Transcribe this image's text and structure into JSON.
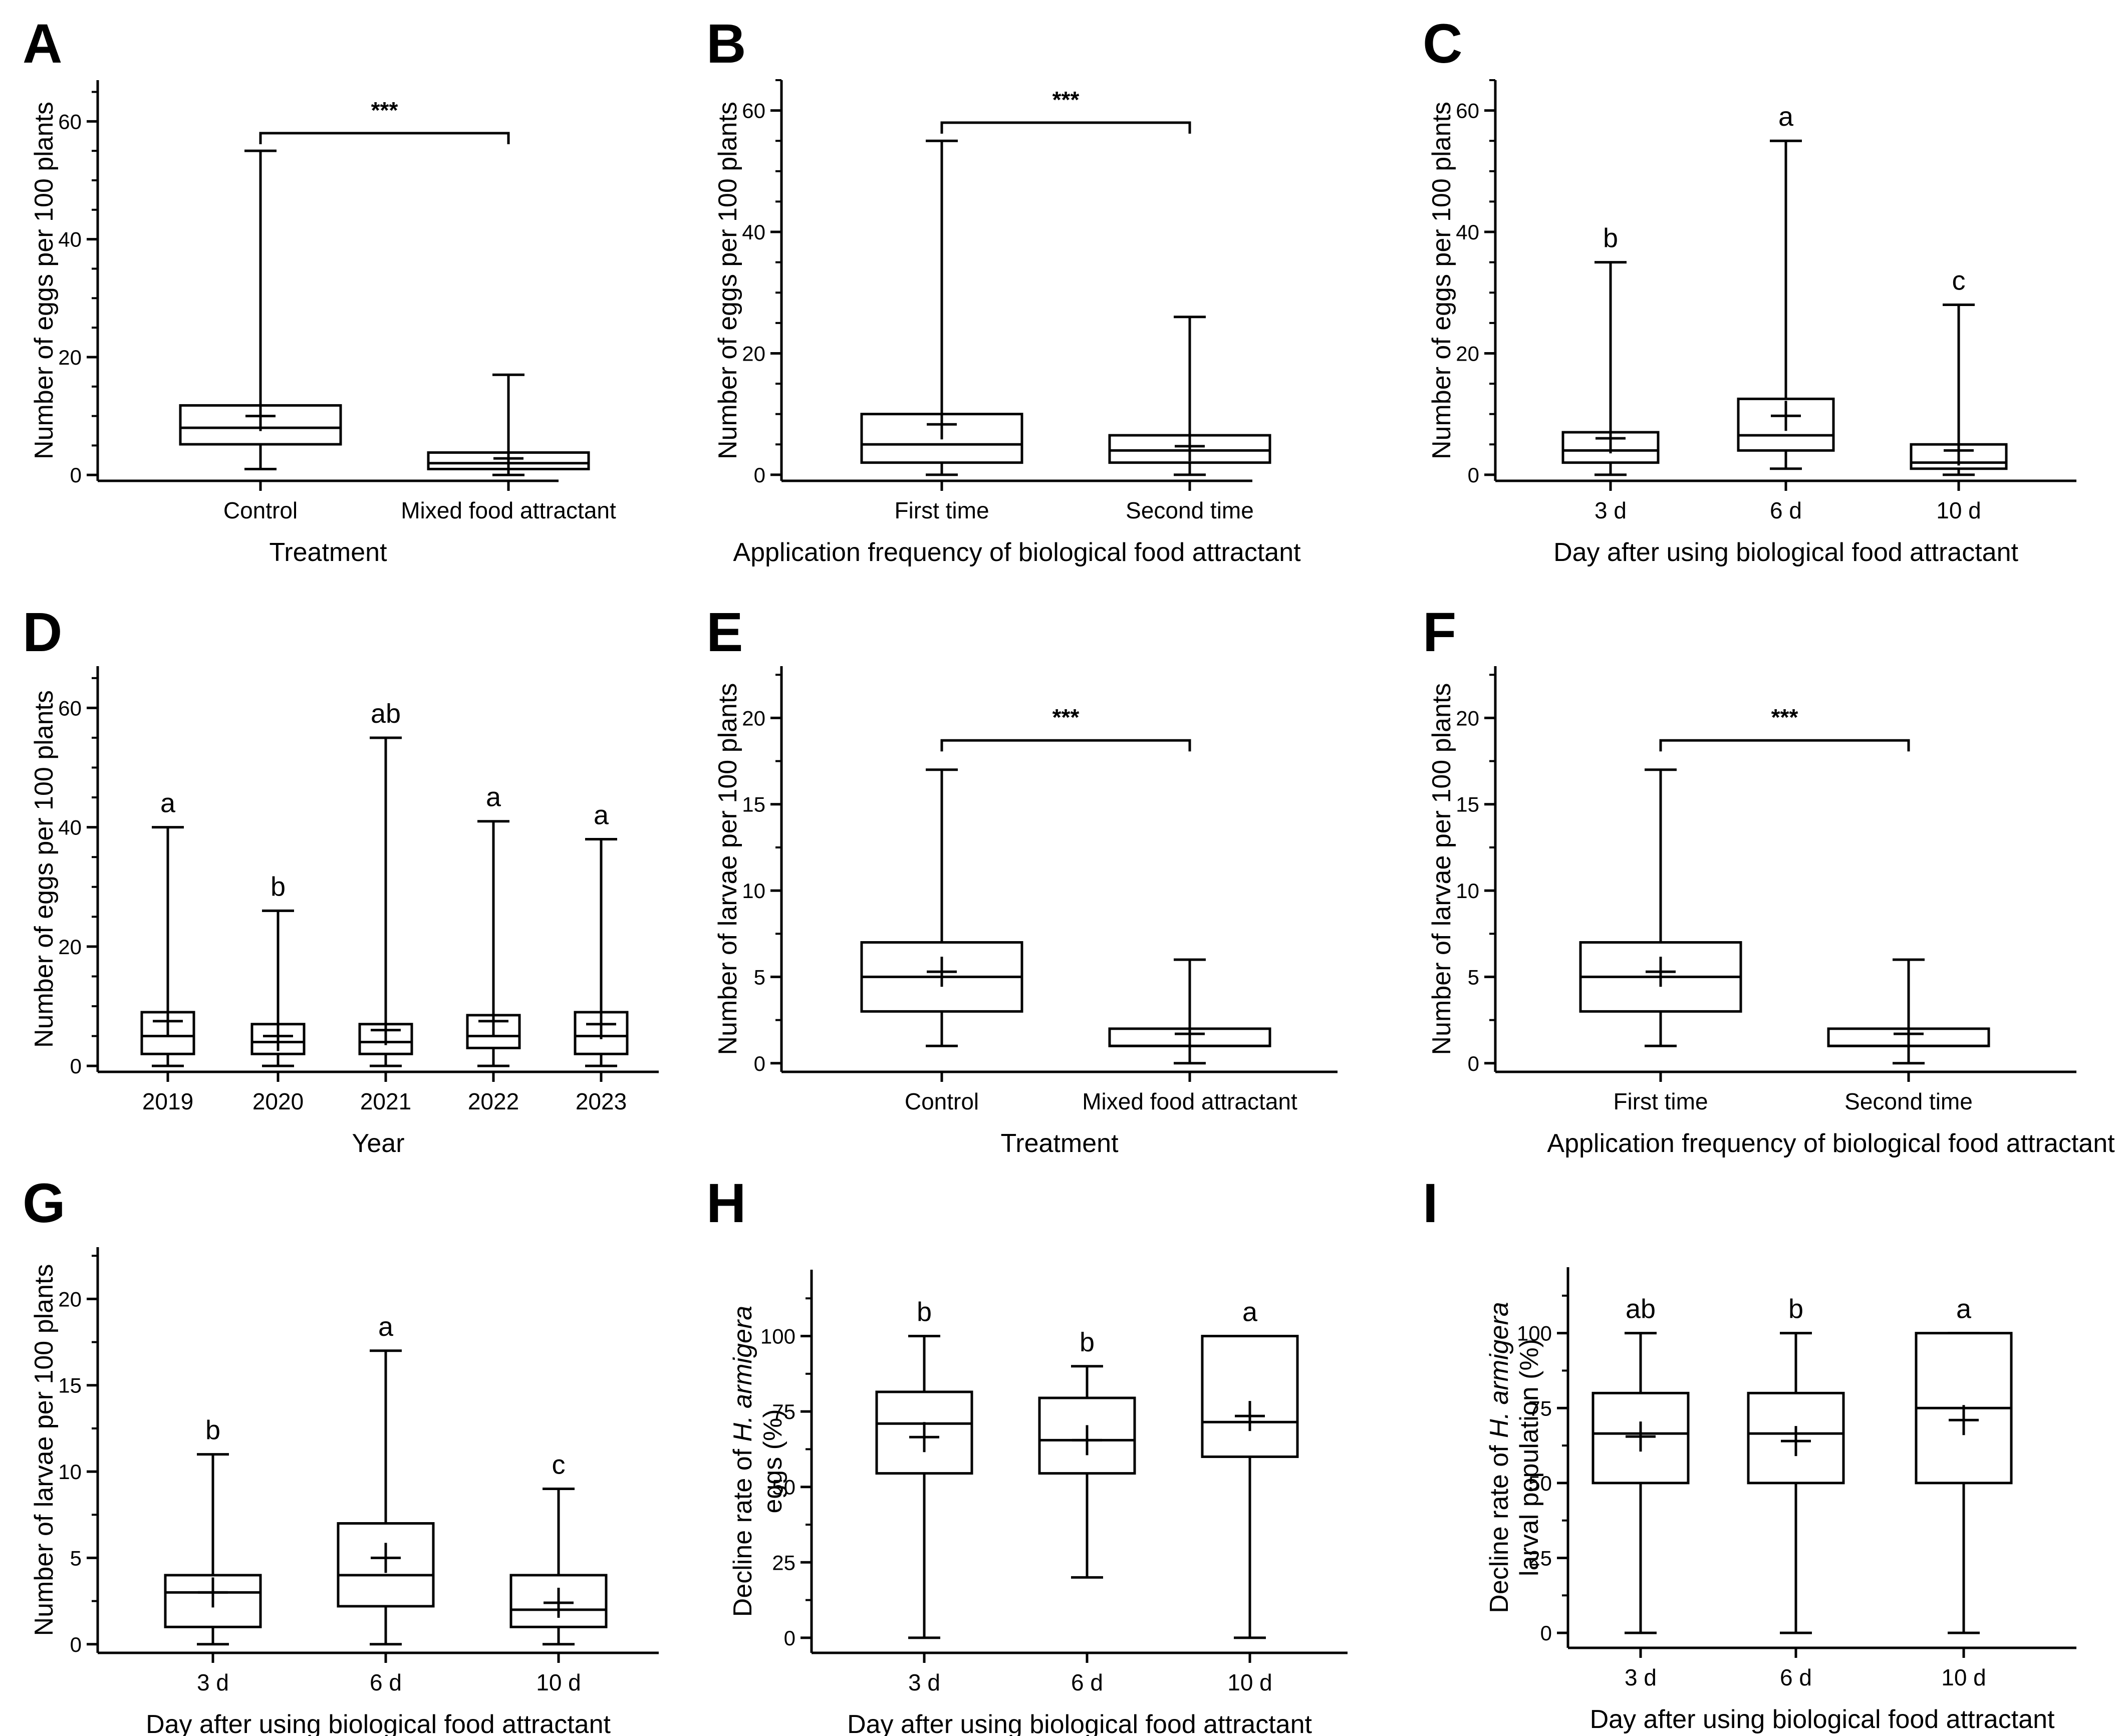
{
  "figure": {
    "panels": [
      {
        "letter": "A",
        "ylabel": "Number of eggs per 100 plants",
        "ylabel_lines": [
          "Number of eggs per 100 plants"
        ],
        "ylabel_italic": "",
        "xlabel": "Treatment",
        "ylim": [
          -1,
          67
        ],
        "yticks": [
          0,
          20,
          40,
          60
        ],
        "ytick_labels": [
          "0",
          "20",
          "40",
          "60"
        ],
        "minor_step": 5,
        "categories": [
          "Control",
          "Mixed food attractant"
        ],
        "boxes": [
          {
            "min": 1,
            "q1": 5.2,
            "median": 8,
            "q3": 11.8,
            "max": 55,
            "mean": 10
          },
          {
            "min": 0,
            "q1": 1,
            "median": 2,
            "q3": 3.8,
            "max": 17,
            "mean": 2.8
          }
        ],
        "letters": [
          "",
          ""
        ],
        "significance": "***",
        "bracket_y": 58
      },
      {
        "letter": "B",
        "ylabel": "Number of eggs per 100 plants",
        "ylabel_lines": [
          "Number of eggs per 100 plants"
        ],
        "ylabel_italic": "",
        "xlabel": "Application frequency of biological food attractant",
        "ylim": [
          -1,
          65
        ],
        "yticks": [
          0,
          20,
          40,
          60
        ],
        "ytick_labels": [
          "0",
          "20",
          "40",
          "60"
        ],
        "minor_step": 5,
        "categories": [
          "First time",
          "Second time"
        ],
        "boxes": [
          {
            "min": 0,
            "q1": 2,
            "median": 5,
            "q3": 10,
            "max": 55,
            "mean": 8.3
          },
          {
            "min": 0,
            "q1": 2,
            "median": 4,
            "q3": 6.5,
            "max": 26,
            "mean": 4.7
          }
        ],
        "letters": [
          "",
          ""
        ],
        "significance": "***",
        "bracket_y": 58
      },
      {
        "letter": "C",
        "ylabel": "Number of eggs per 100 plants",
        "ylabel_lines": [
          "Number of eggs per 100 plants"
        ],
        "ylabel_italic": "",
        "xlabel": "Day after using biological food attractant",
        "ylim": [
          -1,
          65
        ],
        "yticks": [
          0,
          20,
          40,
          60
        ],
        "ytick_labels": [
          "0",
          "20",
          "40",
          "60"
        ],
        "minor_step": 5,
        "categories": [
          "3 d",
          "6 d",
          "10 d"
        ],
        "boxes": [
          {
            "min": 0,
            "q1": 2,
            "median": 4,
            "q3": 7,
            "max": 35,
            "mean": 6
          },
          {
            "min": 1,
            "q1": 4,
            "median": 6.5,
            "q3": 12.5,
            "max": 55,
            "mean": 9.7
          },
          {
            "min": 0,
            "q1": 1,
            "median": 2,
            "q3": 5,
            "max": 28,
            "mean": 4
          }
        ],
        "letters": [
          "b",
          "a",
          "c"
        ],
        "significance": "",
        "bracket_y": 0
      },
      {
        "letter": "D",
        "ylabel": "Number of eggs per 100 plants",
        "ylabel_lines": [
          "Number of eggs per 100 plants"
        ],
        "ylabel_italic": "",
        "xlabel": "Year",
        "ylim": [
          -1,
          67
        ],
        "yticks": [
          0,
          20,
          40,
          60
        ],
        "ytick_labels": [
          "0",
          "20",
          "40",
          "60"
        ],
        "minor_step": 5,
        "categories": [
          "2019",
          "2020",
          "2021",
          "2022",
          "2023"
        ],
        "boxes": [
          {
            "min": 0,
            "q1": 2,
            "median": 5,
            "q3": 9,
            "max": 40,
            "mean": 7.5
          },
          {
            "min": 0,
            "q1": 2,
            "median": 4,
            "q3": 7,
            "max": 26,
            "mean": 5
          },
          {
            "min": 0,
            "q1": 2,
            "median": 4,
            "q3": 7,
            "max": 55,
            "mean": 6
          },
          {
            "min": 0,
            "q1": 3,
            "median": 5,
            "q3": 8.5,
            "max": 41,
            "mean": 7.5
          },
          {
            "min": 0,
            "q1": 2,
            "median": 5,
            "q3": 9,
            "max": 38,
            "mean": 7
          }
        ],
        "letters": [
          "a",
          "b",
          "ab",
          "a",
          "a"
        ],
        "significance": "",
        "bracket_y": 0
      },
      {
        "letter": "E",
        "ylabel": "Number of larvae per 100 plants",
        "ylabel_lines": [
          "Number of larvae per 100 plants"
        ],
        "ylabel_italic": "",
        "xlabel": "Treatment",
        "ylim": [
          -0.5,
          23
        ],
        "yticks": [
          0,
          5,
          10,
          15,
          20
        ],
        "ytick_labels": [
          "0",
          "5",
          "10",
          "15",
          "20"
        ],
        "minor_step": 2.5,
        "categories": [
          "Control",
          "Mixed food attractant"
        ],
        "boxes": [
          {
            "min": 1,
            "q1": 3,
            "median": 5,
            "q3": 7,
            "max": 17,
            "mean": 5.3
          },
          {
            "min": 0,
            "q1": 1,
            "median": 1,
            "q3": 2,
            "max": 6,
            "mean": 1.7
          }
        ],
        "letters": [
          "",
          ""
        ],
        "significance": "***",
        "bracket_y": 18.7
      },
      {
        "letter": "F",
        "ylabel": "Number of larvae per 100 plants",
        "ylabel_lines": [
          "Number of larvae per 100 plants"
        ],
        "ylabel_italic": "",
        "xlabel": "Application frequency of biological food attractant",
        "ylim": [
          -0.5,
          23
        ],
        "yticks": [
          0,
          5,
          10,
          15,
          20
        ],
        "ytick_labels": [
          "0",
          "5",
          "10",
          "15",
          "20"
        ],
        "minor_step": 2.5,
        "categories": [
          "First time",
          "Second time"
        ],
        "boxes": [
          {
            "min": 1,
            "q1": 3,
            "median": 5,
            "q3": 7,
            "max": 17,
            "mean": 5.3
          },
          {
            "min": 0,
            "q1": 1,
            "median": 1,
            "q3": 2,
            "max": 6,
            "mean": 1.7
          }
        ],
        "letters": [
          "",
          ""
        ],
        "significance": "***",
        "bracket_y": 18.7
      },
      {
        "letter": "G",
        "ylabel": "Number of larvae per 100 plants",
        "ylabel_lines": [
          "Number of larvae per 100 plants"
        ],
        "ylabel_italic": "",
        "xlabel": "Day after using biological food attractant",
        "ylim": [
          -0.5,
          23
        ],
        "yticks": [
          0,
          5,
          10,
          15,
          20
        ],
        "ytick_labels": [
          "0",
          "5",
          "10",
          "15",
          "20"
        ],
        "minor_step": 2.5,
        "categories": [
          "3 d",
          "6 d",
          "10 d"
        ],
        "boxes": [
          {
            "min": 0,
            "q1": 1,
            "median": 3,
            "q3": 4,
            "max": 11,
            "mean": 3
          },
          {
            "min": 0,
            "q1": 2.2,
            "median": 4,
            "q3": 7,
            "max": 17,
            "mean": 5
          },
          {
            "min": 0,
            "q1": 1,
            "median": 2,
            "q3": 4,
            "max": 9,
            "mean": 2.4
          }
        ],
        "letters": [
          "b",
          "a",
          "c"
        ],
        "significance": "",
        "bracket_y": 0
      },
      {
        "letter": "H",
        "ylabel": "Decline rate of H. armigera eggs (%)",
        "ylabel_lines": [
          "Decline rate of ",
          "H. armigera",
          "eggs (%)"
        ],
        "ylabel_italic": "H. armigera",
        "xlabel": "Day after using biological food attractant",
        "ylim": [
          -5,
          122
        ],
        "yticks": [
          0,
          25,
          50,
          75,
          100
        ],
        "ytick_labels": [
          "0",
          "25",
          "50",
          "75",
          "100"
        ],
        "minor_step": 12.5,
        "categories": [
          "3 d",
          "6 d",
          "10 d"
        ],
        "boxes": [
          {
            "min": 0,
            "q1": 54.5,
            "median": 71,
            "q3": 81.5,
            "max": 100,
            "mean": 66.5
          },
          {
            "min": 20,
            "q1": 54.5,
            "median": 65.5,
            "q3": 79.5,
            "max": 90,
            "mean": 65.5
          },
          {
            "min": 0,
            "q1": 60,
            "median": 71.5,
            "q3": 100,
            "max": 100,
            "mean": 73.5
          }
        ],
        "letters": [
          "b",
          "b",
          "a"
        ],
        "significance": "",
        "bracket_y": 0
      },
      {
        "letter": "I",
        "ylabel": "Decline rate of H. armigera larval population (%)",
        "ylabel_lines": [
          "Decline rate of ",
          "H. armigera",
          "larval population (%)"
        ],
        "ylabel_italic": "H. armigera",
        "xlabel": "Day after using biological food attractant",
        "ylim": [
          -5,
          122
        ],
        "yticks": [
          0,
          25,
          50,
          75,
          100
        ],
        "ytick_labels": [
          "0",
          "25",
          "50",
          "75",
          "100"
        ],
        "minor_step": 12.5,
        "categories": [
          "3 d",
          "6 d",
          "10 d"
        ],
        "boxes": [
          {
            "min": 0,
            "q1": 50,
            "median": 66.5,
            "q3": 80,
            "max": 100,
            "mean": 65.5
          },
          {
            "min": 0,
            "q1": 50,
            "median": 66.5,
            "q3": 80,
            "max": 100,
            "mean": 64
          },
          {
            "min": 0,
            "q1": 50,
            "median": 75,
            "q3": 100,
            "max": 100,
            "mean": 71
          }
        ],
        "letters": [
          "ab",
          "b",
          "a"
        ],
        "significance": "",
        "bracket_y": 0
      }
    ]
  },
  "chart_data": [
    {
      "type": "box",
      "panel": "A",
      "categories": [
        "Control",
        "Mixed food attractant"
      ],
      "xlabel": "Treatment",
      "ylabel": "Number of eggs per 100 plants",
      "ylim": [
        0,
        67
      ],
      "series": [
        {
          "name": "Control",
          "min": 1,
          "q1": 5.2,
          "median": 8,
          "q3": 11.8,
          "max": 55,
          "mean": 10
        },
        {
          "name": "Mixed food attractant",
          "min": 0,
          "q1": 1,
          "median": 2,
          "q3": 3.8,
          "max": 17,
          "mean": 2.8
        }
      ],
      "annotations": [
        "***"
      ]
    },
    {
      "type": "box",
      "panel": "B",
      "categories": [
        "First time",
        "Second time"
      ],
      "xlabel": "Application frequency of biological food attractant",
      "ylabel": "Number of eggs per 100 plants",
      "ylim": [
        0,
        65
      ],
      "series": [
        {
          "name": "First time",
          "min": 0,
          "q1": 2,
          "median": 5,
          "q3": 10,
          "max": 55,
          "mean": 8.3
        },
        {
          "name": "Second time",
          "min": 0,
          "q1": 2,
          "median": 4,
          "q3": 6.5,
          "max": 26,
          "mean": 4.7
        }
      ],
      "annotations": [
        "***"
      ]
    },
    {
      "type": "box",
      "panel": "C",
      "categories": [
        "3 d",
        "6 d",
        "10 d"
      ],
      "xlabel": "Day after using biological food attractant",
      "ylabel": "Number of eggs per 100 plants",
      "ylim": [
        0,
        65
      ],
      "series": [
        {
          "name": "3 d",
          "min": 0,
          "q1": 2,
          "median": 4,
          "q3": 7,
          "max": 35,
          "mean": 6
        },
        {
          "name": "6 d",
          "min": 1,
          "q1": 4,
          "median": 6.5,
          "q3": 12.5,
          "max": 55,
          "mean": 9.7
        },
        {
          "name": "10 d",
          "min": 0,
          "q1": 1,
          "median": 2,
          "q3": 5,
          "max": 28,
          "mean": 4
        }
      ],
      "annotations": [
        "b",
        "a",
        "c"
      ]
    },
    {
      "type": "box",
      "panel": "D",
      "categories": [
        "2019",
        "2020",
        "2021",
        "2022",
        "2023"
      ],
      "xlabel": "Year",
      "ylabel": "Number of eggs per 100 plants",
      "ylim": [
        0,
        67
      ],
      "series": [
        {
          "name": "2019",
          "min": 0,
          "q1": 2,
          "median": 5,
          "q3": 9,
          "max": 40,
          "mean": 7.5
        },
        {
          "name": "2020",
          "min": 0,
          "q1": 2,
          "median": 4,
          "q3": 7,
          "max": 26,
          "mean": 5
        },
        {
          "name": "2021",
          "min": 0,
          "q1": 2,
          "median": 4,
          "q3": 7,
          "max": 55,
          "mean": 6
        },
        {
          "name": "2022",
          "min": 0,
          "q1": 3,
          "median": 5,
          "q3": 8.5,
          "max": 41,
          "mean": 7.5
        },
        {
          "name": "2023",
          "min": 0,
          "q1": 2,
          "median": 5,
          "q3": 9,
          "max": 38,
          "mean": 7
        }
      ],
      "annotations": [
        "a",
        "b",
        "ab",
        "a",
        "a"
      ]
    },
    {
      "type": "box",
      "panel": "E",
      "categories": [
        "Control",
        "Mixed food attractant"
      ],
      "xlabel": "Treatment",
      "ylabel": "Number of larvae per 100 plants",
      "ylim": [
        0,
        23
      ],
      "series": [
        {
          "name": "Control",
          "min": 1,
          "q1": 3,
          "median": 5,
          "q3": 7,
          "max": 17,
          "mean": 5.3
        },
        {
          "name": "Mixed food attractant",
          "min": 0,
          "q1": 1,
          "median": 1,
          "q3": 2,
          "max": 6,
          "mean": 1.7
        }
      ],
      "annotations": [
        "***"
      ]
    },
    {
      "type": "box",
      "panel": "F",
      "categories": [
        "First time",
        "Second time"
      ],
      "xlabel": "Application frequency of biological food attractant",
      "ylabel": "Number of larvae per 100 plants",
      "ylim": [
        0,
        23
      ],
      "series": [
        {
          "name": "First time",
          "min": 1,
          "q1": 3,
          "median": 5,
          "q3": 7,
          "max": 17,
          "mean": 5.3
        },
        {
          "name": "Second time",
          "min": 0,
          "q1": 1,
          "median": 1,
          "q3": 2,
          "max": 6,
          "mean": 1.7
        }
      ],
      "annotations": [
        "***"
      ]
    },
    {
      "type": "box",
      "panel": "G",
      "categories": [
        "3 d",
        "6 d",
        "10 d"
      ],
      "xlabel": "Day after using biological food attractant",
      "ylabel": "Number of larvae per 100 plants",
      "ylim": [
        0,
        23
      ],
      "series": [
        {
          "name": "3 d",
          "min": 0,
          "q1": 1,
          "median": 3,
          "q3": 4,
          "max": 11,
          "mean": 3
        },
        {
          "name": "6 d",
          "min": 0,
          "q1": 2.2,
          "median": 4,
          "q3": 7,
          "max": 17,
          "mean": 5
        },
        {
          "name": "10 d",
          "min": 0,
          "q1": 1,
          "median": 2,
          "q3": 4,
          "max": 9,
          "mean": 2.4
        }
      ],
      "annotations": [
        "b",
        "a",
        "c"
      ]
    },
    {
      "type": "box",
      "panel": "H",
      "categories": [
        "3 d",
        "6 d",
        "10 d"
      ],
      "xlabel": "Day after using biological food attractant",
      "ylabel": "Decline rate of H. armigera eggs (%)",
      "ylim": [
        0,
        122
      ],
      "series": [
        {
          "name": "3 d",
          "min": 0,
          "q1": 54.5,
          "median": 71,
          "q3": 81.5,
          "max": 100,
          "mean": 66.5
        },
        {
          "name": "6 d",
          "min": 20,
          "q1": 54.5,
          "median": 65.5,
          "q3": 79.5,
          "max": 90,
          "mean": 65.5
        },
        {
          "name": "10 d",
          "min": 0,
          "q1": 60,
          "median": 71.5,
          "q3": 100,
          "max": 100,
          "mean": 73.5
        }
      ],
      "annotations": [
        "b",
        "b",
        "a"
      ]
    },
    {
      "type": "box",
      "panel": "I",
      "categories": [
        "3 d",
        "6 d",
        "10 d"
      ],
      "xlabel": "Day after using biological food attractant",
      "ylabel": "Decline rate of H. armigera larval population (%)",
      "ylim": [
        0,
        122
      ],
      "series": [
        {
          "name": "3 d",
          "min": 0,
          "q1": 50,
          "median": 66.5,
          "q3": 80,
          "max": 100,
          "mean": 65.5
        },
        {
          "name": "6 d",
          "min": 0,
          "q1": 50,
          "median": 66.5,
          "q3": 80,
          "max": 100,
          "mean": 64
        },
        {
          "name": "10 d",
          "min": 0,
          "q1": 50,
          "median": 75,
          "q3": 100,
          "max": 100,
          "mean": 71
        }
      ],
      "annotations": [
        "ab",
        "b",
        "a"
      ]
    }
  ]
}
